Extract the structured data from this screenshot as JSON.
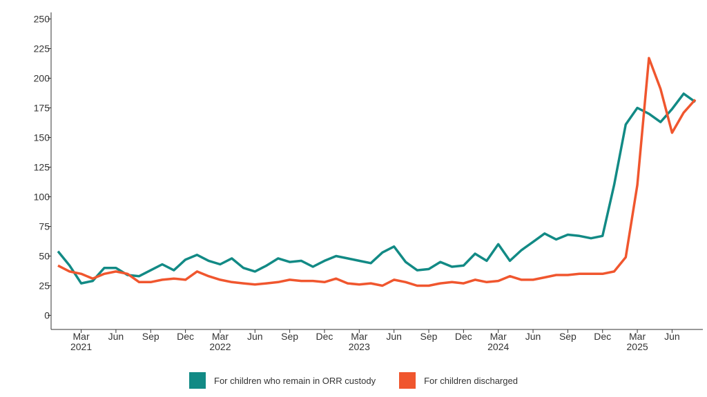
{
  "chart_data": {
    "type": "line",
    "title": "",
    "xlabel": "",
    "ylabel": "",
    "ylim": [
      0,
      250
    ],
    "y_ticks": [
      0,
      25,
      50,
      75,
      100,
      125,
      150,
      175,
      200,
      225,
      250
    ],
    "x_start": "2021-01",
    "x_ticks": [
      {
        "month": "2021-03",
        "label": "Mar",
        "year": "2021"
      },
      {
        "month": "2021-06",
        "label": "Jun",
        "year": ""
      },
      {
        "month": "2021-09",
        "label": "Sep",
        "year": ""
      },
      {
        "month": "2021-12",
        "label": "Dec",
        "year": ""
      },
      {
        "month": "2022-03",
        "label": "Mar",
        "year": "2022"
      },
      {
        "month": "2022-06",
        "label": "Jun",
        "year": ""
      },
      {
        "month": "2022-09",
        "label": "Sep",
        "year": ""
      },
      {
        "month": "2022-12",
        "label": "Dec",
        "year": ""
      },
      {
        "month": "2023-03",
        "label": "Mar",
        "year": "2023"
      },
      {
        "month": "2023-06",
        "label": "Jun",
        "year": ""
      },
      {
        "month": "2023-09",
        "label": "Sep",
        "year": ""
      },
      {
        "month": "2023-12",
        "label": "Dec",
        "year": ""
      },
      {
        "month": "2024-03",
        "label": "Mar",
        "year": "2024"
      },
      {
        "month": "2024-06",
        "label": "Jun",
        "year": ""
      },
      {
        "month": "2024-09",
        "label": "Sep",
        "year": ""
      },
      {
        "month": "2024-12",
        "label": "Dec",
        "year": ""
      },
      {
        "month": "2025-03",
        "label": "Mar",
        "year": "2025"
      },
      {
        "month": "2025-06",
        "label": "Jun",
        "year": ""
      }
    ],
    "grid": false,
    "legend_position": "bottom",
    "series": [
      {
        "name": "For children who remain in ORR custody",
        "color": "#128a85",
        "values": [
          54,
          42,
          27,
          29,
          40,
          40,
          34,
          33,
          38,
          43,
          38,
          47,
          51,
          46,
          43,
          48,
          40,
          37,
          42,
          48,
          45,
          46,
          41,
          46,
          50,
          48,
          46,
          44,
          53,
          58,
          45,
          38,
          39,
          45,
          41,
          42,
          52,
          46,
          60,
          46,
          55,
          62,
          69,
          64,
          68,
          67,
          65,
          67,
          110,
          161,
          175,
          170,
          163,
          174,
          187,
          180
        ]
      },
      {
        "name": "For children discharged",
        "color": "#f0562e",
        "values": [
          42,
          37,
          35,
          31,
          35,
          37,
          35,
          28,
          28,
          30,
          31,
          30,
          37,
          33,
          30,
          28,
          27,
          26,
          27,
          28,
          30,
          29,
          29,
          28,
          31,
          27,
          26,
          27,
          25,
          30,
          28,
          25,
          25,
          27,
          28,
          27,
          30,
          28,
          29,
          33,
          30,
          30,
          32,
          34,
          34,
          35,
          35,
          35,
          37,
          49,
          110,
          217,
          191,
          154,
          171,
          182
        ]
      }
    ]
  }
}
